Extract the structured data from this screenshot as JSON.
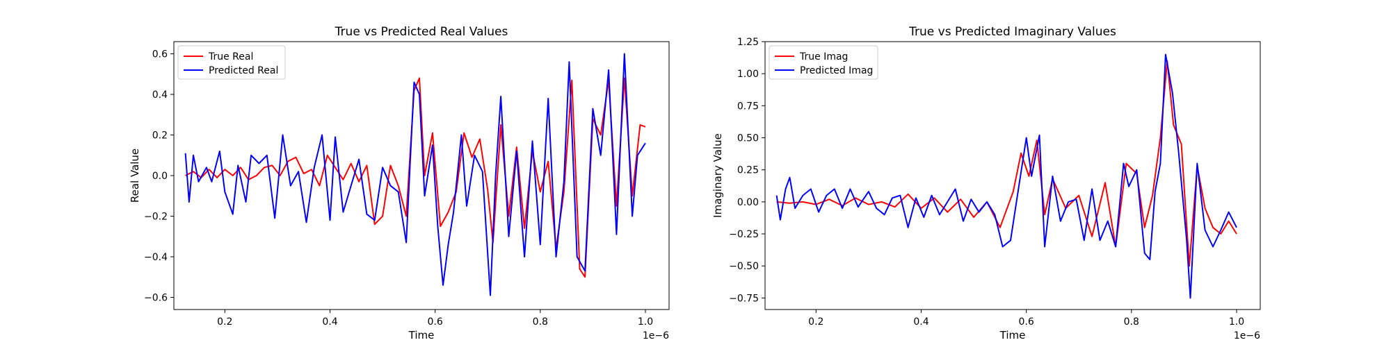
{
  "chart_data": [
    {
      "type": "line",
      "title": "True vs Predicted Real Values",
      "xlabel": "Time",
      "ylabel": "Real Value",
      "x_offset_label": "1e−6",
      "xlim": [
        0.103,
        1.045
      ],
      "ylim": [
        -0.66,
        0.66
      ],
      "xticks": [
        0.2,
        0.4,
        0.6,
        0.8,
        1.0
      ],
      "xtick_labels": [
        "0.2",
        "0.4",
        "0.6",
        "0.8",
        "1.0"
      ],
      "yticks": [
        -0.6,
        -0.4,
        -0.2,
        0.0,
        0.2,
        0.4,
        0.6
      ],
      "ytick_labels": [
        "−0.6",
        "−0.4",
        "−0.2",
        "0.0",
        "0.2",
        "0.4",
        "0.6"
      ],
      "grid": false,
      "legend_position": "top-left",
      "series": [
        {
          "name": "True Real",
          "color": "#ff0000",
          "points": [
            [
              0.125,
              0.0
            ],
            [
              0.14,
              0.02
            ],
            [
              0.155,
              -0.01
            ],
            [
              0.17,
              0.03
            ],
            [
              0.185,
              -0.01
            ],
            [
              0.2,
              0.03
            ],
            [
              0.215,
              0.0
            ],
            [
              0.23,
              0.04
            ],
            [
              0.245,
              -0.02
            ],
            [
              0.26,
              0.0
            ],
            [
              0.275,
              0.04
            ],
            [
              0.29,
              0.05
            ],
            [
              0.305,
              0.0
            ],
            [
              0.32,
              0.07
            ],
            [
              0.335,
              0.09
            ],
            [
              0.35,
              0.01
            ],
            [
              0.365,
              0.03
            ],
            [
              0.38,
              -0.05
            ],
            [
              0.395,
              0.1
            ],
            [
              0.41,
              0.04
            ],
            [
              0.425,
              -0.02
            ],
            [
              0.44,
              0.06
            ],
            [
              0.455,
              -0.03
            ],
            [
              0.47,
              0.05
            ],
            [
              0.485,
              -0.24
            ],
            [
              0.5,
              -0.2
            ],
            [
              0.515,
              0.05
            ],
            [
              0.53,
              -0.05
            ],
            [
              0.545,
              -0.2
            ],
            [
              0.56,
              0.42
            ],
            [
              0.57,
              0.48
            ],
            [
              0.58,
              0.0
            ],
            [
              0.595,
              0.21
            ],
            [
              0.61,
              -0.25
            ],
            [
              0.625,
              -0.18
            ],
            [
              0.64,
              -0.08
            ],
            [
              0.655,
              0.21
            ],
            [
              0.67,
              0.09
            ],
            [
              0.685,
              0.18
            ],
            [
              0.7,
              -0.07
            ],
            [
              0.71,
              -0.33
            ],
            [
              0.725,
              0.25
            ],
            [
              0.74,
              -0.2
            ],
            [
              0.755,
              0.14
            ],
            [
              0.77,
              -0.26
            ],
            [
              0.785,
              0.12
            ],
            [
              0.8,
              -0.08
            ],
            [
              0.815,
              0.07
            ],
            [
              0.83,
              -0.36
            ],
            [
              0.845,
              -0.08
            ],
            [
              0.86,
              0.47
            ],
            [
              0.875,
              -0.46
            ],
            [
              0.885,
              -0.5
            ],
            [
              0.9,
              0.28
            ],
            [
              0.915,
              0.2
            ],
            [
              0.93,
              0.47
            ],
            [
              0.945,
              -0.15
            ],
            [
              0.96,
              0.48
            ],
            [
              0.975,
              -0.1
            ],
            [
              0.99,
              0.25
            ],
            [
              1.0,
              0.24
            ]
          ]
        },
        {
          "name": "Predicted Real",
          "color": "#0000ff",
          "points": [
            [
              0.125,
              0.11
            ],
            [
              0.132,
              -0.13
            ],
            [
              0.14,
              0.1
            ],
            [
              0.15,
              -0.03
            ],
            [
              0.165,
              0.04
            ],
            [
              0.175,
              -0.03
            ],
            [
              0.19,
              0.12
            ],
            [
              0.2,
              -0.08
            ],
            [
              0.215,
              -0.19
            ],
            [
              0.225,
              0.05
            ],
            [
              0.24,
              -0.13
            ],
            [
              0.25,
              0.1
            ],
            [
              0.265,
              0.06
            ],
            [
              0.28,
              0.1
            ],
            [
              0.295,
              -0.21
            ],
            [
              0.31,
              0.2
            ],
            [
              0.325,
              -0.05
            ],
            [
              0.34,
              0.02
            ],
            [
              0.355,
              -0.23
            ],
            [
              0.37,
              0.04
            ],
            [
              0.385,
              0.2
            ],
            [
              0.4,
              -0.22
            ],
            [
              0.41,
              0.19
            ],
            [
              0.425,
              -0.18
            ],
            [
              0.44,
              -0.05
            ],
            [
              0.455,
              0.08
            ],
            [
              0.47,
              -0.19
            ],
            [
              0.485,
              -0.22
            ],
            [
              0.5,
              0.04
            ],
            [
              0.515,
              -0.05
            ],
            [
              0.53,
              -0.08
            ],
            [
              0.545,
              -0.33
            ],
            [
              0.56,
              0.46
            ],
            [
              0.57,
              0.4
            ],
            [
              0.58,
              -0.1
            ],
            [
              0.595,
              0.15
            ],
            [
              0.605,
              -0.25
            ],
            [
              0.615,
              -0.54
            ],
            [
              0.625,
              -0.34
            ],
            [
              0.635,
              -0.18
            ],
            [
              0.65,
              0.2
            ],
            [
              0.66,
              -0.15
            ],
            [
              0.675,
              0.1
            ],
            [
              0.69,
              0.02
            ],
            [
              0.705,
              -0.59
            ],
            [
              0.715,
              0.0
            ],
            [
              0.725,
              0.39
            ],
            [
              0.74,
              -0.3
            ],
            [
              0.755,
              0.12
            ],
            [
              0.77,
              -0.4
            ],
            [
              0.785,
              0.17
            ],
            [
              0.8,
              -0.34
            ],
            [
              0.815,
              0.38
            ],
            [
              0.83,
              -0.4
            ],
            [
              0.845,
              -0.03
            ],
            [
              0.855,
              0.56
            ],
            [
              0.87,
              -0.4
            ],
            [
              0.885,
              -0.47
            ],
            [
              0.9,
              0.33
            ],
            [
              0.915,
              0.1
            ],
            [
              0.93,
              0.52
            ],
            [
              0.945,
              -0.29
            ],
            [
              0.96,
              0.6
            ],
            [
              0.975,
              -0.2
            ],
            [
              0.985,
              0.1
            ],
            [
              1.0,
              0.16
            ]
          ]
        }
      ]
    },
    {
      "type": "line",
      "title": "True vs Predicted Imaginary Values",
      "xlabel": "Time",
      "ylabel": "Imaginary Value",
      "x_offset_label": "1e−6",
      "xlim": [
        0.103,
        1.045
      ],
      "ylim": [
        -0.84,
        1.25
      ],
      "xticks": [
        0.2,
        0.4,
        0.6,
        0.8,
        1.0
      ],
      "xtick_labels": [
        "0.2",
        "0.4",
        "0.6",
        "0.8",
        "1.0"
      ],
      "yticks": [
        -0.75,
        -0.5,
        -0.25,
        0.0,
        0.25,
        0.5,
        0.75,
        1.0,
        1.25
      ],
      "ytick_labels": [
        "−0.75",
        "−0.50",
        "−0.25",
        "0.00",
        "0.25",
        "0.50",
        "0.75",
        "1.00",
        "1.25"
      ],
      "grid": false,
      "legend_position": "top-left",
      "series": [
        {
          "name": "True Imag",
          "color": "#ff0000",
          "points": [
            [
              0.125,
              0.0
            ],
            [
              0.15,
              -0.01
            ],
            [
              0.175,
              0.0
            ],
            [
              0.2,
              -0.02
            ],
            [
              0.225,
              0.02
            ],
            [
              0.25,
              -0.03
            ],
            [
              0.275,
              0.03
            ],
            [
              0.3,
              -0.02
            ],
            [
              0.325,
              0.0
            ],
            [
              0.35,
              -0.04
            ],
            [
              0.375,
              0.06
            ],
            [
              0.4,
              -0.05
            ],
            [
              0.425,
              0.03
            ],
            [
              0.45,
              -0.08
            ],
            [
              0.475,
              0.02
            ],
            [
              0.5,
              -0.12
            ],
            [
              0.525,
              0.0
            ],
            [
              0.55,
              -0.2
            ],
            [
              0.575,
              0.08
            ],
            [
              0.59,
              0.38
            ],
            [
              0.605,
              0.2
            ],
            [
              0.62,
              0.48
            ],
            [
              0.635,
              -0.1
            ],
            [
              0.65,
              0.18
            ],
            [
              0.675,
              -0.05
            ],
            [
              0.7,
              0.05
            ],
            [
              0.725,
              -0.27
            ],
            [
              0.75,
              0.15
            ],
            [
              0.77,
              -0.35
            ],
            [
              0.79,
              0.3
            ],
            [
              0.81,
              0.22
            ],
            [
              0.825,
              -0.2
            ],
            [
              0.84,
              0.05
            ],
            [
              0.855,
              0.5
            ],
            [
              0.868,
              1.1
            ],
            [
              0.88,
              0.6
            ],
            [
              0.895,
              0.45
            ],
            [
              0.91,
              -0.5
            ],
            [
              0.925,
              0.28
            ],
            [
              0.94,
              -0.05
            ],
            [
              0.955,
              -0.2
            ],
            [
              0.97,
              -0.25
            ],
            [
              0.985,
              -0.15
            ],
            [
              1.0,
              -0.25
            ]
          ]
        },
        {
          "name": "Predicted Imag",
          "color": "#0000ff",
          "points": [
            [
              0.125,
              0.05
            ],
            [
              0.132,
              -0.14
            ],
            [
              0.142,
              0.1
            ],
            [
              0.15,
              0.19
            ],
            [
              0.16,
              -0.05
            ],
            [
              0.175,
              0.05
            ],
            [
              0.19,
              0.1
            ],
            [
              0.205,
              -0.08
            ],
            [
              0.22,
              0.05
            ],
            [
              0.235,
              0.1
            ],
            [
              0.25,
              -0.05
            ],
            [
              0.265,
              0.1
            ],
            [
              0.28,
              -0.04
            ],
            [
              0.3,
              0.08
            ],
            [
              0.315,
              -0.05
            ],
            [
              0.33,
              -0.1
            ],
            [
              0.345,
              0.03
            ],
            [
              0.36,
              0.05
            ],
            [
              0.375,
              -0.2
            ],
            [
              0.39,
              0.03
            ],
            [
              0.405,
              -0.12
            ],
            [
              0.42,
              0.05
            ],
            [
              0.435,
              -0.1
            ],
            [
              0.45,
              0.0
            ],
            [
              0.465,
              0.1
            ],
            [
              0.48,
              -0.15
            ],
            [
              0.495,
              0.02
            ],
            [
              0.51,
              -0.08
            ],
            [
              0.525,
              0.0
            ],
            [
              0.54,
              -0.1
            ],
            [
              0.555,
              -0.35
            ],
            [
              0.57,
              -0.3
            ],
            [
              0.585,
              0.1
            ],
            [
              0.6,
              0.5
            ],
            [
              0.61,
              0.2
            ],
            [
              0.625,
              0.52
            ],
            [
              0.635,
              -0.35
            ],
            [
              0.65,
              0.2
            ],
            [
              0.665,
              -0.15
            ],
            [
              0.68,
              0.0
            ],
            [
              0.695,
              0.02
            ],
            [
              0.71,
              -0.3
            ],
            [
              0.725,
              0.1
            ],
            [
              0.74,
              -0.3
            ],
            [
              0.755,
              -0.15
            ],
            [
              0.77,
              -0.35
            ],
            [
              0.785,
              0.3
            ],
            [
              0.795,
              0.12
            ],
            [
              0.81,
              0.25
            ],
            [
              0.825,
              -0.4
            ],
            [
              0.835,
              -0.45
            ],
            [
              0.845,
              0.08
            ],
            [
              0.855,
              0.3
            ],
            [
              0.865,
              1.15
            ],
            [
              0.878,
              0.85
            ],
            [
              0.89,
              0.38
            ],
            [
              0.905,
              -0.3
            ],
            [
              0.912,
              -0.75
            ],
            [
              0.925,
              0.3
            ],
            [
              0.94,
              -0.22
            ],
            [
              0.955,
              -0.35
            ],
            [
              0.97,
              -0.22
            ],
            [
              0.985,
              -0.08
            ],
            [
              1.0,
              -0.2
            ]
          ]
        }
      ]
    }
  ]
}
